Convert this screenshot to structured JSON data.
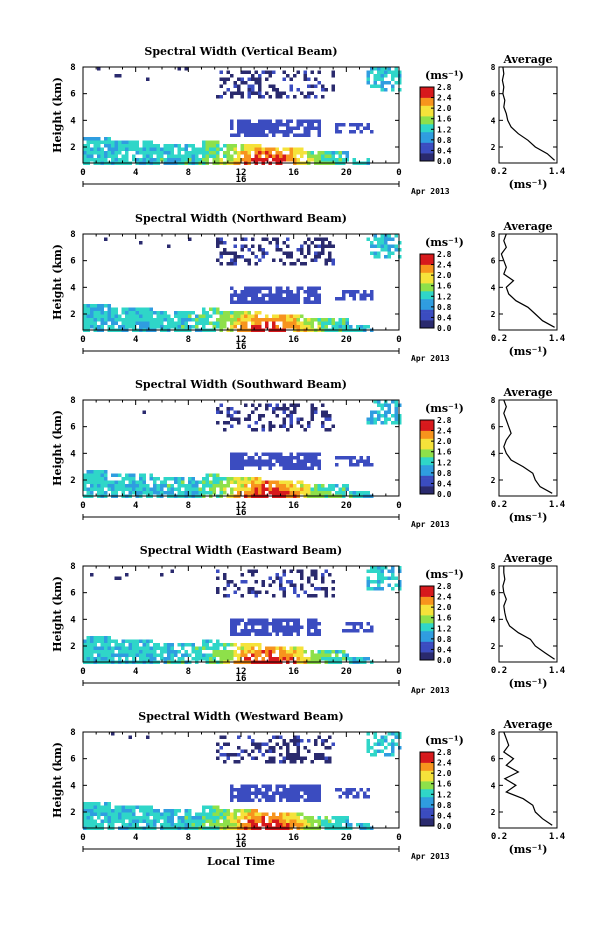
{
  "chart_data": [
    {
      "type": "heatmap",
      "title": "Spectral Width (Vertical Beam)",
      "ylabel": "Height (km)",
      "xlabel": "",
      "date_label": "16",
      "month_label": "Apr 2013",
      "x_ticks": [
        "0",
        "4",
        "8",
        "12",
        "16",
        "20",
        "0"
      ],
      "y_ticks": [
        "2",
        "4",
        "6",
        "8"
      ],
      "xlim": [
        0,
        24
      ],
      "ylim": [
        0.8,
        8
      ],
      "colorbar": {
        "unit": "(ms⁻¹)",
        "ticks": [
          "0.0",
          "0.4",
          "0.8",
          "1.2",
          "1.6",
          "2.0",
          "2.4",
          "2.8"
        ],
        "range": [
          0,
          2.8
        ]
      },
      "profile": {
        "title": "Average",
        "xlabel": "(ms⁻¹)",
        "x_ticks": [
          "0.2",
          "1.4"
        ],
        "y_ticks": [
          "2",
          "4",
          "6",
          "8"
        ],
        "xlim": [
          0.2,
          1.4
        ],
        "ylim": [
          0.8,
          8
        ],
        "height": [
          1.0,
          1.5,
          2.0,
          2.5,
          3.0,
          3.5,
          4.0,
          4.5,
          5.0,
          5.5,
          6.0,
          6.5,
          7.0,
          7.5,
          8.0
        ],
        "width": [
          1.35,
          1.2,
          0.95,
          0.8,
          0.6,
          0.45,
          0.38,
          0.35,
          0.3,
          0.32,
          0.28,
          0.3,
          0.27,
          0.3,
          0.28
        ]
      }
    },
    {
      "type": "heatmap",
      "title": "Spectral Width (Northward Beam)",
      "ylabel": "Height (km)",
      "xlabel": "",
      "date_label": "16",
      "month_label": "Apr 2013",
      "x_ticks": [
        "0",
        "4",
        "8",
        "12",
        "16",
        "20",
        "0"
      ],
      "y_ticks": [
        "2",
        "4",
        "6",
        "8"
      ],
      "xlim": [
        0,
        24
      ],
      "ylim": [
        0.8,
        8
      ],
      "colorbar": {
        "unit": "(ms⁻¹)",
        "ticks": [
          "0.0",
          "0.4",
          "0.8",
          "1.2",
          "1.6",
          "2.0",
          "2.4",
          "2.8"
        ],
        "range": [
          0,
          2.8
        ]
      },
      "profile": {
        "title": "Average",
        "xlabel": "(ms⁻¹)",
        "x_ticks": [
          "0.2",
          "1.4"
        ],
        "y_ticks": [
          "2",
          "4",
          "6",
          "8"
        ],
        "xlim": [
          0.2,
          1.4
        ],
        "ylim": [
          0.8,
          8
        ],
        "height": [
          1.0,
          1.5,
          2.0,
          2.5,
          3.0,
          3.5,
          4.0,
          4.5,
          5.0,
          5.5,
          6.0,
          6.5,
          7.0,
          7.5,
          8.0
        ],
        "width": [
          1.35,
          1.1,
          0.95,
          0.8,
          0.55,
          0.4,
          0.35,
          0.5,
          0.3,
          0.35,
          0.3,
          0.25,
          0.35,
          0.3,
          0.35
        ]
      }
    },
    {
      "type": "heatmap",
      "title": "Spectral Width (Southward Beam)",
      "ylabel": "Height (km)",
      "xlabel": "",
      "date_label": "16",
      "month_label": "Apr 2013",
      "x_ticks": [
        "0",
        "4",
        "8",
        "12",
        "16",
        "20",
        "0"
      ],
      "y_ticks": [
        "2",
        "4",
        "6",
        "8"
      ],
      "xlim": [
        0,
        24
      ],
      "ylim": [
        0.8,
        8
      ],
      "colorbar": {
        "unit": "(ms⁻¹)",
        "ticks": [
          "0.0",
          "0.4",
          "0.8",
          "1.2",
          "1.6",
          "2.0",
          "2.4",
          "2.8"
        ],
        "range": [
          0,
          2.8
        ]
      },
      "profile": {
        "title": "Average",
        "xlabel": "(ms⁻¹)",
        "x_ticks": [
          "0.2",
          "1.4"
        ],
        "y_ticks": [
          "2",
          "4",
          "6",
          "8"
        ],
        "xlim": [
          0.2,
          1.4
        ],
        "ylim": [
          0.8,
          8
        ],
        "height": [
          1.0,
          1.5,
          2.0,
          2.5,
          3.0,
          3.5,
          4.0,
          4.5,
          5.0,
          5.5,
          6.0,
          6.5,
          7.0,
          7.5,
          8.0
        ],
        "width": [
          1.3,
          1.05,
          0.95,
          0.9,
          0.7,
          0.45,
          0.35,
          0.3,
          0.35,
          0.45,
          0.4,
          0.35,
          0.3,
          0.35,
          0.3
        ]
      }
    },
    {
      "type": "heatmap",
      "title": "Spectral Width (Eastward Beam)",
      "ylabel": "Height (km)",
      "xlabel": "",
      "date_label": "16",
      "month_label": "Apr 2013",
      "x_ticks": [
        "0",
        "4",
        "8",
        "12",
        "16",
        "20",
        "0"
      ],
      "y_ticks": [
        "2",
        "4",
        "6",
        "8"
      ],
      "xlim": [
        0,
        24
      ],
      "ylim": [
        0.8,
        8
      ],
      "colorbar": {
        "unit": "(ms⁻¹)",
        "ticks": [
          "0.0",
          "0.4",
          "0.8",
          "1.2",
          "1.6",
          "2.0",
          "2.4",
          "2.8"
        ],
        "range": [
          0,
          2.8
        ]
      },
      "profile": {
        "title": "Average",
        "xlabel": "(ms⁻¹)",
        "x_ticks": [
          "0.2",
          "1.4"
        ],
        "y_ticks": [
          "2",
          "4",
          "6",
          "8"
        ],
        "xlim": [
          0.2,
          1.4
        ],
        "ylim": [
          0.8,
          8
        ],
        "height": [
          1.0,
          1.5,
          2.0,
          2.5,
          3.0,
          3.5,
          4.0,
          4.5,
          5.0,
          5.5,
          6.0,
          6.5,
          7.0,
          7.5,
          8.0
        ],
        "width": [
          1.35,
          1.15,
          0.95,
          0.85,
          0.6,
          0.42,
          0.35,
          0.32,
          0.3,
          0.35,
          0.3,
          0.28,
          0.32,
          0.3,
          0.3
        ]
      }
    },
    {
      "type": "heatmap",
      "title": "Spectral Width (Westward Beam)",
      "ylabel": "Height (km)",
      "xlabel": "Local Time",
      "date_label": "16",
      "month_label": "Apr 2013",
      "x_ticks": [
        "0",
        "4",
        "8",
        "12",
        "16",
        "20",
        "0"
      ],
      "y_ticks": [
        "2",
        "4",
        "6",
        "8"
      ],
      "xlim": [
        0,
        24
      ],
      "ylim": [
        0.8,
        8
      ],
      "colorbar": {
        "unit": "(ms⁻¹)",
        "ticks": [
          "0.0",
          "0.4",
          "0.8",
          "1.2",
          "1.6",
          "2.0",
          "2.4",
          "2.8"
        ],
        "range": [
          0,
          2.8
        ]
      },
      "profile": {
        "title": "Average",
        "xlabel": "(ms⁻¹)",
        "x_ticks": [
          "0.2",
          "1.4"
        ],
        "y_ticks": [
          "2",
          "4",
          "6",
          "8"
        ],
        "xlim": [
          0.2,
          1.4
        ],
        "ylim": [
          0.8,
          8
        ],
        "height": [
          1.0,
          1.5,
          2.0,
          2.5,
          3.0,
          3.5,
          4.0,
          4.5,
          5.0,
          5.5,
          6.0,
          6.5,
          7.0,
          7.5,
          8.0
        ],
        "width": [
          1.3,
          1.1,
          0.95,
          0.9,
          0.7,
          0.35,
          0.55,
          0.32,
          0.6,
          0.35,
          0.5,
          0.3,
          0.4,
          0.35,
          0.3
        ]
      }
    }
  ],
  "colors": {
    "axis": "#000000",
    "colormap": [
      "#2a2a6e",
      "#3b4cc0",
      "#2f9de0",
      "#2fd6c8",
      "#8ee04a",
      "#f5e23a",
      "#f7941d",
      "#d7191c"
    ]
  }
}
